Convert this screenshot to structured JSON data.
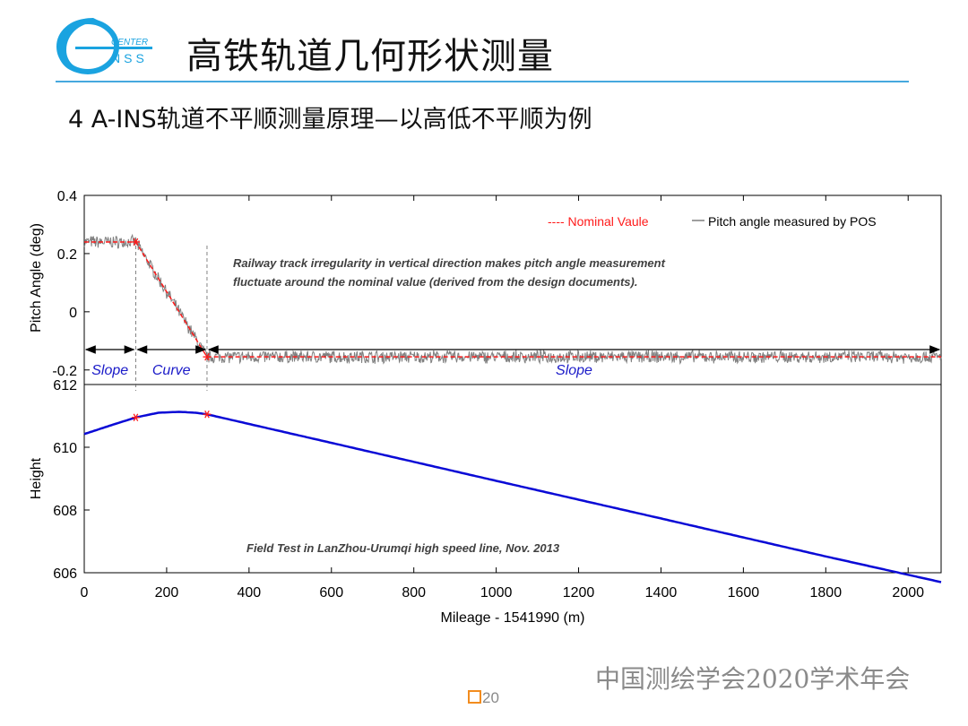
{
  "header": {
    "logo_text_top": "CENTER",
    "logo_text_bottom": "NSS",
    "title": "高铁轨道几何形状测量",
    "subtitle": "4  A-INS轨道不平顺测量原理—以高低不平顺为例"
  },
  "footer": {
    "org": "中国测绘学会2020学术年会",
    "page": "20"
  },
  "colors": {
    "accent": "#46a8de",
    "nominal": "#ff1a1a",
    "measured": "#7f7f7f",
    "height_line": "#0a0ad6",
    "segment_label": "#1a1ac8",
    "page_box": "#f28c1e"
  },
  "chart_data": [
    {
      "type": "line",
      "ylabel": "Pitch Angle (deg)",
      "ylim": [
        -0.25,
        0.4
      ],
      "yticks": [
        -0.2,
        0,
        0.2,
        0.4
      ],
      "xlim": [
        0,
        2080
      ],
      "legend": {
        "placement": "top-right",
        "entries": [
          "---- Nominal Vaule",
          "Pitch angle measured by POS"
        ]
      },
      "annotation": [
        "Railway track irregularity in vertical direction makes pitch angle measurement",
        "fluctuate around the nominal value (derived from the design documents)."
      ],
      "series": [
        {
          "name": "---- Nominal Vaule",
          "style": "dashed",
          "x": [
            0,
            125,
            298,
            2080
          ],
          "y": [
            0.24,
            0.24,
            -0.155,
            -0.155
          ]
        },
        {
          "name": "Pitch angle measured by POS",
          "style": "noisy",
          "x": [
            0,
            125,
            298,
            2080
          ],
          "y": [
            0.24,
            0.24,
            -0.155,
            -0.155
          ],
          "noise": 0.02
        }
      ],
      "markers": {
        "x": [
          125,
          298
        ],
        "y": [
          0.24,
          -0.155
        ]
      },
      "segments": [
        {
          "label": "Slope",
          "from": 0,
          "to": 125
        },
        {
          "label": "Curve",
          "from": 125,
          "to": 298
        },
        {
          "label": "Slope",
          "from": 298,
          "to": 2080
        }
      ]
    },
    {
      "type": "line",
      "ylabel": "Height",
      "xlabel": "Mileage - 1541990 (m)",
      "ylim": [
        606,
        612
      ],
      "yticks": [
        606,
        608,
        610,
        612
      ],
      "xlim": [
        0,
        2080
      ],
      "xticks": [
        0,
        200,
        400,
        600,
        800,
        1000,
        1200,
        1400,
        1600,
        1800,
        2000
      ],
      "annotation": "Field Test in LanZhou-Urumqi high speed line, Nov. 2013",
      "series": [
        {
          "name": "",
          "x": [
            0,
            60,
            125,
            180,
            230,
            270,
            298,
            600,
            1000,
            1400,
            1800,
            2080
          ],
          "y": [
            610.42,
            610.68,
            610.95,
            611.1,
            611.13,
            611.1,
            611.05,
            610.14,
            608.93,
            607.73,
            606.52,
            605.7
          ]
        }
      ],
      "markers": {
        "x": [
          125,
          298
        ],
        "y": [
          610.95,
          611.05
        ]
      }
    }
  ]
}
